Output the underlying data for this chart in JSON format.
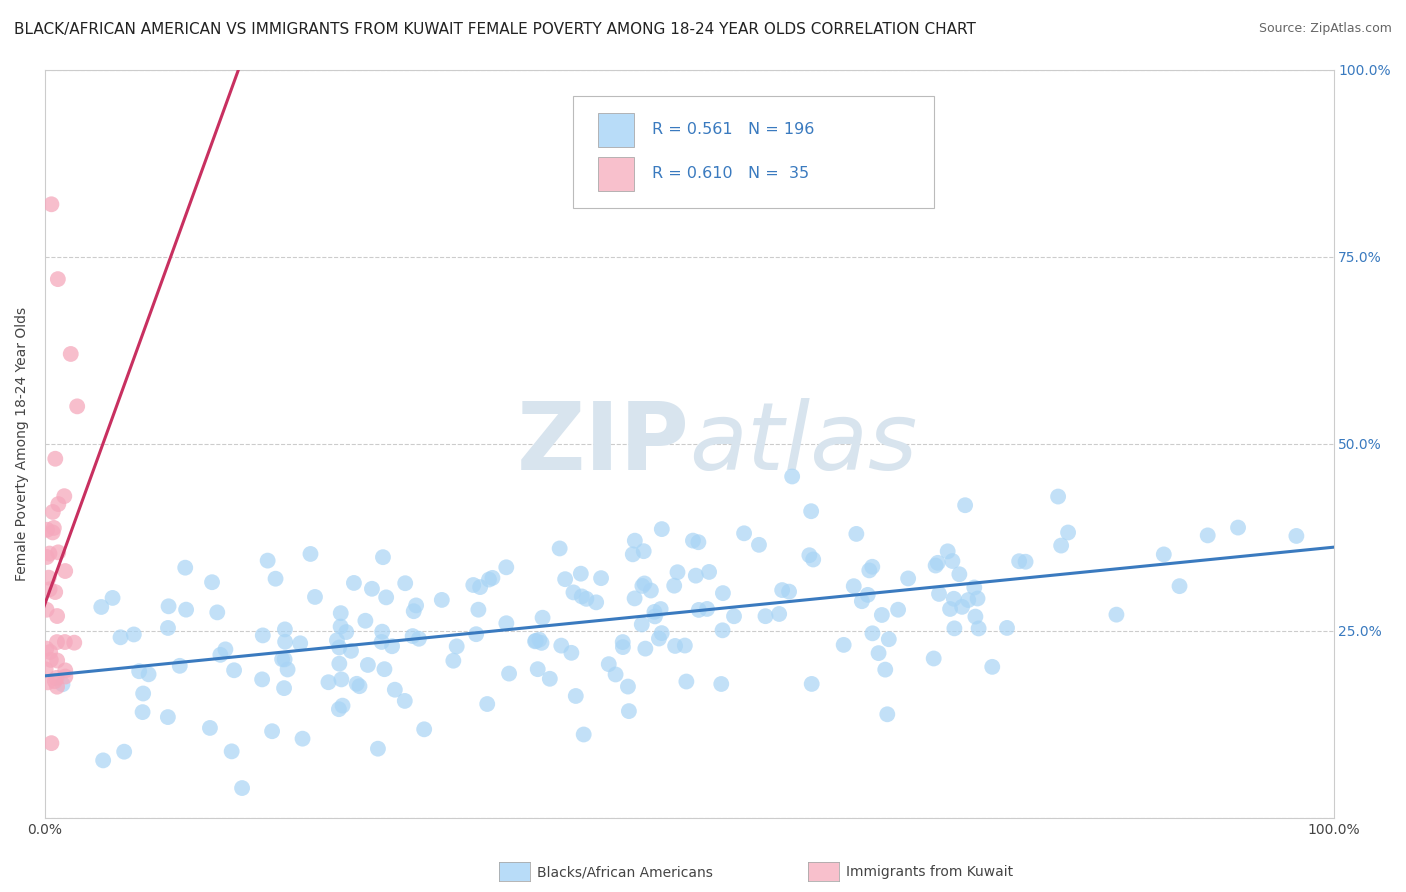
{
  "title": "BLACK/AFRICAN AMERICAN VS IMMIGRANTS FROM KUWAIT FEMALE POVERTY AMONG 18-24 YEAR OLDS CORRELATION CHART",
  "source": "Source: ZipAtlas.com",
  "ylabel": "Female Poverty Among 18-24 Year Olds",
  "xlim": [
    0,
    1.0
  ],
  "ylim": [
    0,
    1.0
  ],
  "blue_R": 0.561,
  "blue_N": 196,
  "pink_R": 0.61,
  "pink_N": 35,
  "blue_color": "#a8d4f5",
  "pink_color": "#f5a8bc",
  "blue_line_color": "#3a7abf",
  "pink_line_color": "#c83060",
  "legend_blue_face": "#b8dcf8",
  "legend_pink_face": "#f8c0cc",
  "background_color": "#ffffff",
  "title_fontsize": 11.0,
  "source_fontsize": 9,
  "watermark_color": "#d8e4ee",
  "seed": 7
}
